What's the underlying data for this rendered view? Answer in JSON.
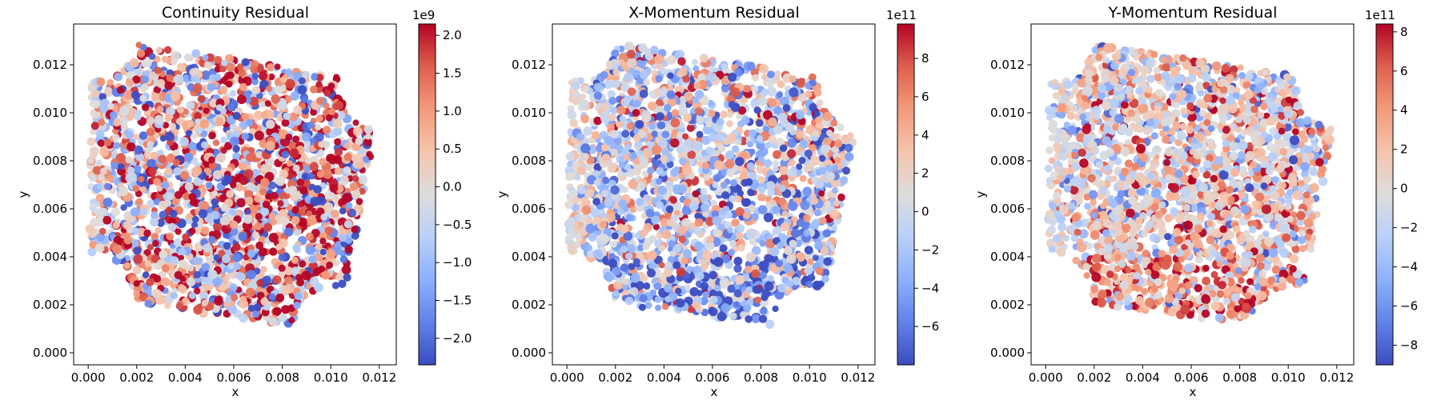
{
  "chart_data": [
    {
      "type": "scatter",
      "title": "Continuity Residual",
      "xlabel": "x",
      "ylabel": "y",
      "xlim": [
        -0.0006,
        0.0127
      ],
      "ylim": [
        -0.0005,
        0.0137
      ],
      "xticks": [
        0.0,
        0.002,
        0.004,
        0.006,
        0.008,
        0.01,
        0.012
      ],
      "xtick_labels": [
        "0.000",
        "0.002",
        "0.004",
        "0.006",
        "0.008",
        "0.010",
        "0.012"
      ],
      "yticks": [
        0.0,
        0.002,
        0.004,
        0.006,
        0.008,
        0.01,
        0.012
      ],
      "ytick_labels": [
        "0.000",
        "0.002",
        "0.004",
        "0.006",
        "0.008",
        "0.010",
        "0.012"
      ],
      "colormap": "coolwarm",
      "colorbar": {
        "exponent_label": "1e9",
        "vmin": -2.35,
        "vmax": 2.15,
        "ticks": [
          -2.0,
          -1.5,
          -1.0,
          -0.5,
          0.0,
          0.5,
          1.0,
          1.5,
          2.0
        ],
        "tick_labels": [
          "−2.0",
          "−1.5",
          "−1.0",
          "−0.5",
          "0.0",
          "0.5",
          "1.0",
          "1.5",
          "2.0"
        ]
      },
      "domain": {
        "corners": [
          [
            0.0,
            0.0023
          ],
          [
            0.0103,
            0.0009
          ],
          [
            0.0122,
            0.0112
          ],
          [
            0.0002,
            0.0132
          ]
        ],
        "notch_radius": 0.0019
      },
      "point_pattern": {
        "seed": 11,
        "count": 2300,
        "bias": 0.35,
        "spread": 0.32,
        "trend_x": 0.1,
        "trend_y": -0.05,
        "bottom_heavy": 0.05,
        "heavy_side": "both",
        "edge_bias": 0.3,
        "tail_prob": 0.12
      }
    },
    {
      "type": "scatter",
      "title": "X-Momentum Residual",
      "xlabel": "x",
      "ylabel": "y",
      "xlim": [
        -0.0006,
        0.0127
      ],
      "ylim": [
        -0.0005,
        0.0137
      ],
      "xticks": [
        0.0,
        0.002,
        0.004,
        0.006,
        0.008,
        0.01,
        0.012
      ],
      "xtick_labels": [
        "0.000",
        "0.002",
        "0.004",
        "0.006",
        "0.008",
        "0.010",
        "0.012"
      ],
      "yticks": [
        0.0,
        0.002,
        0.004,
        0.006,
        0.008,
        0.01,
        0.012
      ],
      "ytick_labels": [
        "0.000",
        "0.002",
        "0.004",
        "0.006",
        "0.008",
        "0.010",
        "0.012"
      ],
      "colormap": "coolwarm",
      "colorbar": {
        "exponent_label": "1e11",
        "vmin": -8.0,
        "vmax": 9.8,
        "ticks": [
          -6,
          -4,
          -2,
          0,
          2,
          4,
          6,
          8
        ],
        "tick_labels": [
          "−6",
          "−4",
          "−2",
          "0",
          "2",
          "4",
          "6",
          "8"
        ]
      },
      "domain": {
        "corners": [
          [
            0.0,
            0.0023
          ],
          [
            0.0103,
            0.0009
          ],
          [
            0.0122,
            0.0112
          ],
          [
            0.0002,
            0.0132
          ]
        ],
        "notch_radius": 0.0019
      },
      "point_pattern": {
        "seed": 23,
        "count": 2300,
        "bias": -0.2,
        "spread": 0.2,
        "trend_x": 0.0,
        "trend_y": 0.05,
        "bottom_heavy": 0.3,
        "heavy_side": "blue",
        "edge_bias": 0.45,
        "tail_prob": 0.1
      }
    },
    {
      "type": "scatter",
      "title": "Y-Momentum Residual",
      "xlabel": "x",
      "ylabel": "y",
      "xlim": [
        -0.0006,
        0.0127
      ],
      "ylim": [
        -0.0005,
        0.0137
      ],
      "xticks": [
        0.0,
        0.002,
        0.004,
        0.006,
        0.008,
        0.01,
        0.012
      ],
      "xtick_labels": [
        "0.000",
        "0.002",
        "0.004",
        "0.006",
        "0.008",
        "0.010",
        "0.012"
      ],
      "yticks": [
        0.0,
        0.002,
        0.004,
        0.006,
        0.008,
        0.01,
        0.012
      ],
      "ytick_labels": [
        "0.000",
        "0.002",
        "0.004",
        "0.006",
        "0.008",
        "0.010",
        "0.012"
      ],
      "colormap": "coolwarm",
      "colorbar": {
        "exponent_label": "1e11",
        "vmin": -9.0,
        "vmax": 8.4,
        "ticks": [
          -8,
          -6,
          -4,
          -2,
          0,
          2,
          4,
          6,
          8
        ],
        "tick_labels": [
          "−8",
          "−6",
          "−4",
          "−2",
          "0",
          "2",
          "4",
          "6",
          "8"
        ]
      },
      "domain": {
        "corners": [
          [
            0.0,
            0.0023
          ],
          [
            0.0103,
            0.0009
          ],
          [
            0.0122,
            0.0112
          ],
          [
            0.0002,
            0.0132
          ]
        ],
        "notch_radius": 0.0019
      },
      "point_pattern": {
        "seed": 37,
        "count": 2300,
        "bias": 0.15,
        "spread": 0.18,
        "trend_x": 0.05,
        "trend_y": 0.0,
        "bottom_heavy": 0.35,
        "heavy_side": "red",
        "edge_bias": 0.45,
        "tail_prob": 0.08
      }
    }
  ]
}
